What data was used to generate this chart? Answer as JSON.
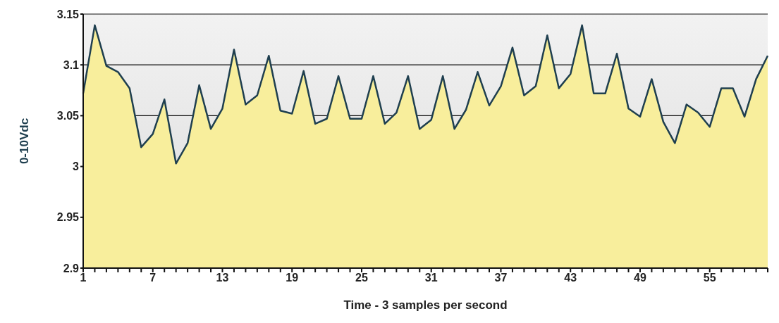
{
  "chart_data": {
    "type": "area",
    "xlabel": "Time - 3 samples per second",
    "ylabel": "0-10Vdc",
    "categories": [
      "1",
      null,
      null,
      null,
      null,
      null,
      "7",
      null,
      null,
      null,
      null,
      null,
      "13",
      null,
      null,
      null,
      null,
      null,
      "19",
      null,
      null,
      null,
      null,
      null,
      "25",
      null,
      null,
      null,
      null,
      null,
      "31",
      null,
      null,
      null,
      null,
      null,
      "37",
      null,
      null,
      null,
      null,
      null,
      "43",
      null,
      null,
      null,
      null,
      null,
      "49",
      null,
      null,
      null,
      null,
      null,
      "55",
      null,
      null,
      null,
      null,
      null
    ],
    "series": [
      {
        "color": "#f8ee9c",
        "values": [
          3.072,
          3.139,
          3.099,
          3.093,
          3.077,
          3.019,
          3.032,
          3.066,
          3.003,
          3.023,
          3.08,
          3.037,
          3.057,
          3.115,
          3.061,
          3.07,
          3.109,
          3.055,
          3.052,
          3.094,
          3.042,
          3.047,
          3.089,
          3.047,
          3.047,
          3.089,
          3.042,
          3.053,
          3.089,
          3.037,
          3.046,
          3.089,
          3.037,
          3.056,
          3.093,
          3.06,
          3.079,
          3.117,
          3.07,
          3.079,
          3.129,
          3.077,
          3.091,
          3.139,
          3.072,
          3.072,
          3.111,
          3.057,
          3.049,
          3.086,
          3.044,
          3.023,
          3.061,
          3.053,
          3.039,
          3.077,
          3.077,
          3.049,
          3.086,
          3.109
        ]
      },
      {
        "type": "line",
        "color": "#1f3f4f",
        "values": [
          3.072,
          3.139,
          3.099,
          3.093,
          3.077,
          3.019,
          3.032,
          3.066,
          3.003,
          3.023,
          3.08,
          3.037,
          3.057,
          3.115,
          3.061,
          3.07,
          3.109,
          3.055,
          3.052,
          3.094,
          3.042,
          3.047,
          3.089,
          3.047,
          3.047,
          3.089,
          3.042,
          3.053,
          3.089,
          3.037,
          3.046,
          3.089,
          3.037,
          3.056,
          3.093,
          3.06,
          3.079,
          3.117,
          3.07,
          3.079,
          3.129,
          3.077,
          3.091,
          3.139,
          3.072,
          3.072,
          3.111,
          3.057,
          3.049,
          3.086,
          3.044,
          3.023,
          3.061,
          3.053,
          3.039,
          3.077,
          3.077,
          3.049,
          3.086,
          3.109
        ]
      }
    ],
    "ylim": [
      2.9,
      3.15
    ],
    "yticks": [
      2.9,
      2.95,
      3,
      3.05,
      3.1,
      3.15
    ],
    "grid": "y",
    "legend": false,
    "marker": "none",
    "line_style": "solid"
  }
}
